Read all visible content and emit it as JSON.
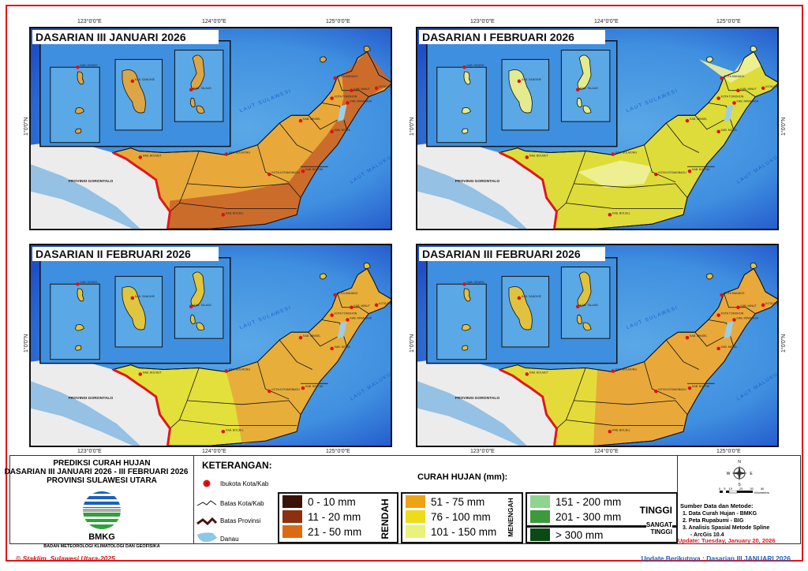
{
  "coords": {
    "lon": [
      "123°0'0\"E",
      "124°0'0\"E",
      "125°0'0\"E"
    ],
    "lat": "1°0'0\"N"
  },
  "places": {
    "sitaro": "KAB. SITARO",
    "sangihe": "KAB. SANGIHE",
    "talaud": "KAB. TALAUD",
    "manado": "KOTA MANADO",
    "minut": "KAB. MINUT",
    "bitung": "KOTA BITUNG",
    "tomohon": "KOTA TOMOHON",
    "minahasa": "KAB. MINAHASA",
    "minsel": "KAB. MINSEL",
    "mitra": "KAB. MITRA",
    "bolmut": "KAB. BOLMUT",
    "bolmong": "KAB. BOLMONG",
    "kotamobagu": "KOTA KOTAMOBAGU",
    "boltim": "KAB. BOLTIM",
    "bolsel": "KAB. BOLSEL",
    "gorontalo": "PROVINSI GORONTALO",
    "laut_sulawesi": "LAUT SULAWESI",
    "laut_maluku": "LAUT MALUKU"
  },
  "maps": [
    {
      "title": "DASARIAN III JANUARI 2026",
      "main_fill": "#e8a93a",
      "second_fill": "#c9652a",
      "islands_fill": "#dca645"
    },
    {
      "title": "DASARIAN I FEBRUARI 2026",
      "main_fill": "#dedc3a",
      "second_fill": "#eef19a",
      "islands_fill": "#e4eb8e"
    },
    {
      "title": "DASARIAN II FEBRUARI 2026",
      "main_fill": "#e3e03c",
      "second_fill": "#e8a93a",
      "islands_fill": "#e0c63e"
    },
    {
      "title": "DASARIAN III FEBRUARI 2026",
      "main_fill": "#e8a93a",
      "second_fill": "#e3e03c",
      "islands_fill": "#e0c23e"
    }
  ],
  "legend": {
    "title": [
      "PREDIKSI CURAH HUJAN",
      "DASARIAN III JANUARI 2026 - III FEBRUARI 2026",
      "PROVINSI SULAWESI UTARA"
    ],
    "org_short": "BMKG",
    "org_full": "BADAN METEOROLOGI KLIMATOLOGI DAN GEOFISIKA",
    "keterangan": "KETERANGAN:",
    "symbols": [
      "Ibukota Kota/Kab",
      "Batas Kota/Kab",
      "Batas Provinsi",
      "Danau"
    ],
    "curah_title": "CURAH HUJAN (mm):",
    "classes": [
      {
        "label": "0 - 10 mm",
        "color": "#3b1206"
      },
      {
        "label": "11 - 20 mm",
        "color": "#8c300d"
      },
      {
        "label": "21 - 50 mm",
        "color": "#dc6a10"
      },
      {
        "label": "51 - 75 mm",
        "color": "#eda316"
      },
      {
        "label": "76 - 100 mm",
        "color": "#eddc1a"
      },
      {
        "label": "101 - 150 mm",
        "color": "#e9f27a"
      },
      {
        "label": "151 - 200 mm",
        "color": "#8fd48f"
      },
      {
        "label": "201 - 300 mm",
        "color": "#3c9a3c"
      },
      {
        "label": "> 300 mm",
        "color": "#0a4a12"
      }
    ],
    "categories": {
      "rendah": "RENDAH",
      "menengah": "MENENGAH",
      "tinggi": "TINGGI",
      "sangat_tinggi": [
        "SANGAT",
        "TINGGI"
      ]
    },
    "compass": {
      "n": "N",
      "s": "S",
      "e": "E",
      "w": "W"
    },
    "scale": {
      "ticks": [
        "0",
        "5",
        "10",
        "20",
        "30",
        "40"
      ],
      "unit": "Kilometers"
    },
    "source_title": "Sumber Data dan Metode:",
    "sources": [
      "1. Data Curah Hujan - BMKG",
      "2. Peta Rupabumi - BIG",
      "3. Analisis Spasial Metode Spline",
      "- ArcGis 10.4"
    ],
    "update": "Update: Tuesday, January 20, 2026"
  },
  "footer": {
    "copyright": "© Staklim_Sulawesi Utara-2025",
    "next_update": "Update Berikutnya : Dasarian III JANUARI 2026"
  }
}
